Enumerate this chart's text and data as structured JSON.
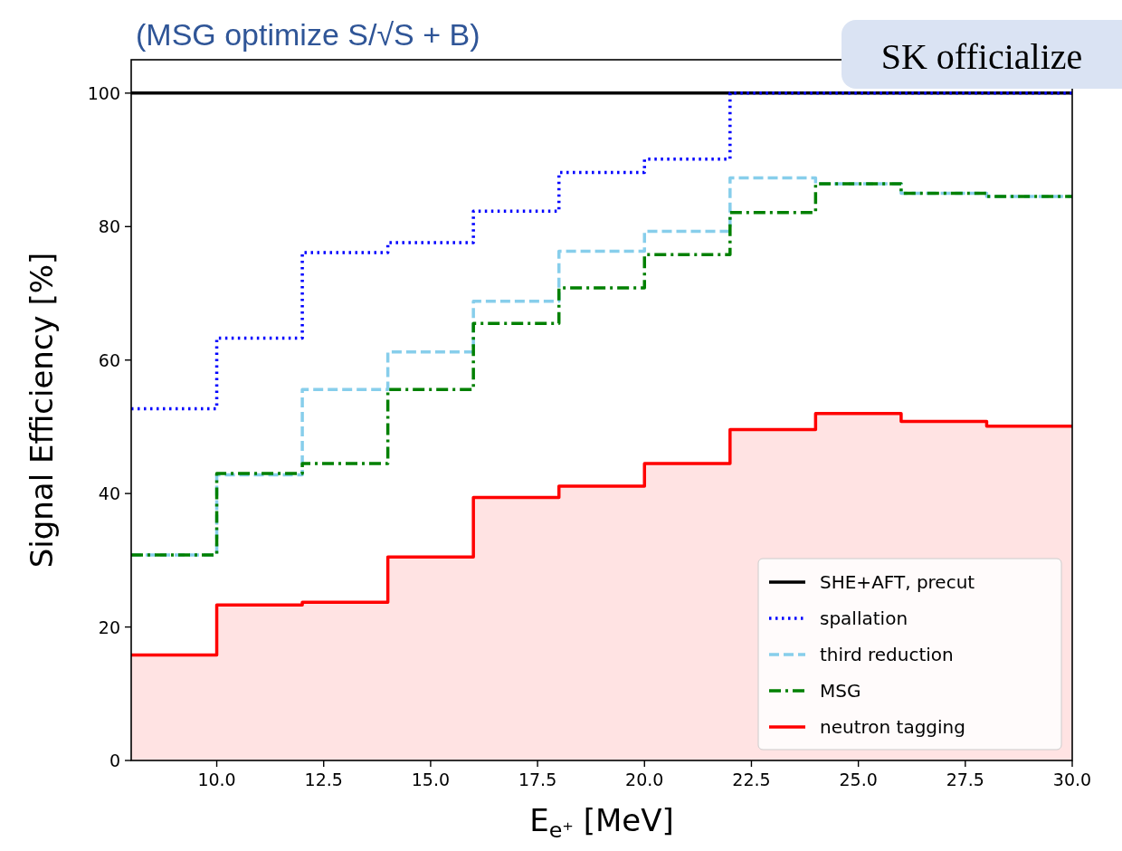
{
  "chart_data": {
    "type": "histogram",
    "title": "(MSG optimize S/√S + B)",
    "xlabel": "E$_{e⁺}$ [MeV]",
    "ylabel": "Signal Efficiency [%]",
    "annotations": [
      "SK officialize"
    ],
    "bins": [
      8,
      10,
      12,
      14,
      16,
      18,
      20,
      22,
      24,
      26,
      28,
      30
    ],
    "series": [
      {
        "name": "SHE+AFT, precut",
        "color": "#000000",
        "line_style": "solid",
        "values": [
          100,
          100,
          100,
          100,
          100,
          100,
          100,
          100,
          100,
          100,
          100
        ]
      },
      {
        "name": "spallation",
        "color": "#0000ff",
        "line_style": "dotted",
        "values": [
          52.7,
          63.3,
          76.1,
          77.6,
          82.3,
          88.1,
          90.1,
          100,
          100,
          100,
          100
        ]
      },
      {
        "name": "third reduction",
        "color": "#87ceeb",
        "line_style": "dashed",
        "values": [
          30.8,
          42.8,
          55.6,
          61.2,
          68.8,
          76.3,
          79.3,
          87.3,
          86.4,
          85.0,
          84.5
        ]
      },
      {
        "name": "MSG",
        "color": "#008000",
        "line_style": "dashdot",
        "values": [
          30.8,
          43.0,
          44.5,
          55.6,
          65.5,
          70.8,
          75.8,
          82.1,
          86.4,
          85.0,
          84.5
        ]
      },
      {
        "name": "neutron tagging",
        "color": "#ff0000",
        "type": "area",
        "line_style": "solid",
        "x": [
          8,
          10,
          10,
          12,
          12,
          14,
          14,
          16,
          16,
          18,
          18,
          20,
          20,
          22,
          22,
          24,
          24,
          26,
          26,
          28,
          28,
          30
        ],
        "values": [
          15.8,
          15.8,
          23.3,
          23.3,
          23.7,
          23.7,
          30.5,
          30.5,
          39.4,
          39.4,
          41.1,
          41.1,
          44.5,
          44.5,
          49.6,
          49.6,
          52.0,
          52.0,
          50.8,
          50.8,
          50.1,
          50.1
        ]
      }
    ],
    "xlim": [
      8,
      30
    ],
    "ylim": [
      0,
      105
    ],
    "xticks": [
      {
        "value": 10,
        "label": "10.0"
      },
      {
        "value": 12.5,
        "label": "12.5"
      },
      {
        "value": 15,
        "label": "15.0"
      },
      {
        "value": 17.5,
        "label": "17.5"
      },
      {
        "value": 20,
        "label": "20.0"
      },
      {
        "value": 22.5,
        "label": "22.5"
      },
      {
        "value": 25,
        "label": "25.0"
      },
      {
        "value": 27.5,
        "label": "27.5"
      },
      {
        "value": 30,
        "label": "30.0"
      }
    ],
    "yticks": [
      0,
      20,
      40,
      60,
      80,
      100
    ],
    "legend": "bottom right"
  }
}
